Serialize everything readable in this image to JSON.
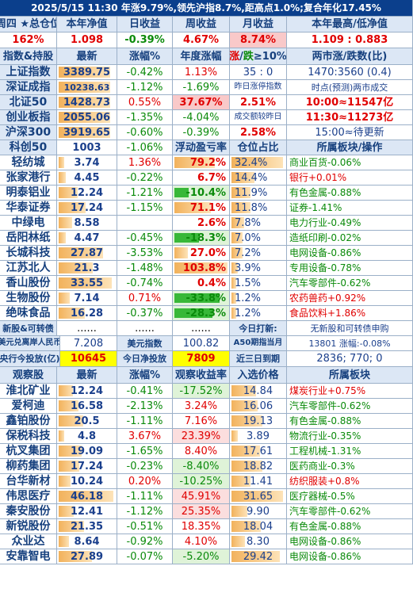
{
  "title_bar": "2025/5/15  11:30 年涨9.79%,领先沪指8.7%,距高点1.0%;复合年化17.45%",
  "summary_headers": [
    "周四 ★总仓位",
    "本年净值",
    "日收益",
    "周收益",
    "月收益",
    "本年最高/低净值"
  ],
  "summary_values": [
    "162%",
    "1.098",
    "-0.39%",
    "4.67%",
    "8.74%",
    "1.109 : 0.883"
  ],
  "index_headers": [
    "指数&持股",
    "最新",
    "涨幅%",
    "年度涨幅",
    "涨/跌≥10%",
    "两市涨/跌数(比)"
  ],
  "indices": [
    {
      "name": "上证指数",
      "last": "3389.75",
      "chg": "-0.42%",
      "ytd": "1.13%",
      "ud": "35 : 0",
      "extra": "1470:3560 (0.4)"
    },
    {
      "name": "深证成指",
      "last": "10238.63",
      "chg": "-1.12%",
      "ytd": "-1.69%",
      "ud": "昨日涨停指数",
      "extra": "时点(预测)两市成交"
    },
    {
      "name": "北证50",
      "last": "1428.73",
      "chg": "0.55%",
      "ytd": "37.67%",
      "ud": "2.51%",
      "extra": "10:00≈11547亿"
    },
    {
      "name": "创业板指",
      "last": "2055.06",
      "chg": "-1.35%",
      "ytd": "-4.04%",
      "ud": "成交额较昨日",
      "extra": "11:30≈11273亿"
    },
    {
      "name": "沪深300",
      "last": "3919.65",
      "chg": "-0.60%",
      "ytd": "-0.39%",
      "ud": "2.58%",
      "extra": "15:00≈待更新"
    },
    {
      "name": "科创50",
      "last": "1003",
      "chg": "-1.06%",
      "ytd": "浮动盈亏率",
      "ud": "仓位占比",
      "extra": "所属板块/操作"
    }
  ],
  "holdings": [
    {
      "name": "轻纺城",
      "last": "3.74",
      "chg": "1.36%",
      "pnl": "79.2%",
      "pos": "32.4%",
      "sector": "商业百货-0.06%"
    },
    {
      "name": "张家港行",
      "last": "4.45",
      "chg": "-0.22%",
      "pnl": "6.7%",
      "pos": "14.4%",
      "sector": "银行+0.01%"
    },
    {
      "name": "明泰铝业",
      "last": "12.24",
      "chg": "-1.21%",
      "pnl": "-10.4%",
      "pos": "11.9%",
      "sector": "有色金属-0.88%"
    },
    {
      "name": "华泰证券",
      "last": "17.24",
      "chg": "-1.15%",
      "pnl": "71.1%",
      "pos": "11.8%",
      "sector": "证券-1.41%"
    },
    {
      "name": "中绿电",
      "last": "8.58",
      "chg": "",
      "pnl": "2.6%",
      "pos": "7.8%",
      "sector": "电力行业-0.49%"
    },
    {
      "name": "岳阳林纸",
      "last": "4.47",
      "chg": "-0.45%",
      "pnl": "-18.3%",
      "pos": "7.0%",
      "sector": "造纸印刷-0.02%"
    },
    {
      "name": "长城科技",
      "last": "27.87",
      "chg": "-3.53%",
      "pnl": "27.0%",
      "pos": "7.2%",
      "sector": "电网设备-0.86%"
    },
    {
      "name": "江苏北人",
      "last": "21.3",
      "chg": "-1.48%",
      "pnl": "103.8%",
      "pos": "3.9%",
      "sector": "专用设备-0.78%"
    },
    {
      "name": "香山股份",
      "last": "33.55",
      "chg": "-0.74%",
      "pnl": "0.4%",
      "pos": "1.5%",
      "sector": "汽车零部件-0.62%"
    },
    {
      "name": "生物股份",
      "last": "7.14",
      "chg": "0.71%",
      "pnl": "-33.8%",
      "pos": "1.2%",
      "sector": "农药兽药+0.92%"
    },
    {
      "name": "绝味食品",
      "last": "16.28",
      "chg": "-0.37%",
      "pnl": "-28.3%",
      "pos": "1.2%",
      "sector": "食品饮料+1.86%"
    }
  ],
  "newstock": {
    "name": "新股&可转债",
    "a": "......",
    "b": "......",
    "c": "......",
    "d": "今日打新:",
    "e": "无新股和可转债申购"
  },
  "fx_row": {
    "l1": "美元兑离岸人民币",
    "v1": "7.208",
    "l2": "美元指数",
    "v2": "100.82",
    "l3": "A50期指当月",
    "v3": "13801 涨幅:-0.08%"
  },
  "cb_row": {
    "l1": "央行今投放(亿)",
    "v1": "10645",
    "l2": "今日净投放",
    "v2": "7809",
    "l3": "近三日到期",
    "v3": "2836; 770; 0"
  },
  "watch_headers": [
    "观察股",
    "最新",
    "涨幅%",
    "观察收益率",
    "入选价格",
    "所属板块"
  ],
  "watch": [
    {
      "name": "淮北矿业",
      "last": "12.24",
      "chg": "-0.41%",
      "ret": "-17.52%",
      "price": "14.84",
      "sector": "煤炭行业+0.75%"
    },
    {
      "name": "爱柯迪",
      "last": "16.58",
      "chg": "-2.13%",
      "ret": "3.24%",
      "price": "16.06",
      "sector": "汽车零部件-0.62%"
    },
    {
      "name": "鑫铂股份",
      "last": "20.5",
      "chg": "-1.11%",
      "ret": "7.16%",
      "price": "19.13",
      "sector": "有色金属-0.88%"
    },
    {
      "name": "保税科技",
      "last": "4.8",
      "chg": "3.67%",
      "ret": "23.39%",
      "price": "3.89",
      "sector": "物流行业-0.35%"
    },
    {
      "name": "杭叉集团",
      "last": "19.09",
      "chg": "-1.65%",
      "ret": "8.40%",
      "price": "17.61",
      "sector": "工程机械-1.31%"
    },
    {
      "name": "柳药集团",
      "last": "17.24",
      "chg": "-0.23%",
      "ret": "-8.40%",
      "price": "18.82",
      "sector": "医药商业-0.3%"
    },
    {
      "name": "台华新材",
      "last": "10.24",
      "chg": "0.20%",
      "ret": "-10.25%",
      "price": "11.41",
      "sector": "纺织服装+0.8%"
    },
    {
      "name": "伟思医疗",
      "last": "46.18",
      "chg": "-1.11%",
      "ret": "45.91%",
      "price": "31.65",
      "sector": "医疗器械-0.5%"
    },
    {
      "name": "秦安股份",
      "last": "12.41",
      "chg": "-1.12%",
      "ret": "25.35%",
      "price": "9.90",
      "sector": "汽车零部件-0.62%"
    },
    {
      "name": "新锐股份",
      "last": "21.35",
      "chg": "-0.51%",
      "ret": "18.35%",
      "price": "18.04",
      "sector": "有色金属-0.88%"
    },
    {
      "name": "众业达",
      "last": "8.64",
      "chg": "-0.92%",
      "ret": "4.10%",
      "price": "8.30",
      "sector": "电网设备-0.86%"
    },
    {
      "name": "安靠智电",
      "last": "27.89",
      "chg": "-0.07%",
      "ret": "-5.20%",
      "price": "29.42",
      "sector": "电网设备-0.86%"
    }
  ]
}
